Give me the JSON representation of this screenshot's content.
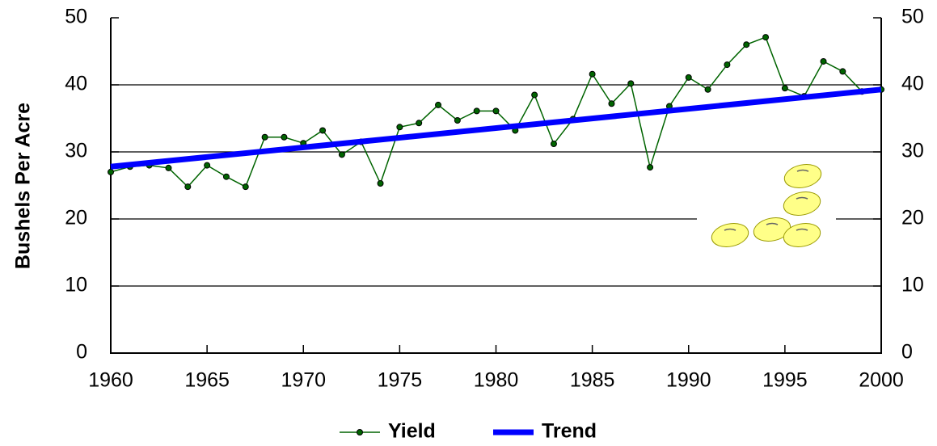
{
  "chart_data": {
    "type": "line",
    "ylabel": "Bushels Per Acre",
    "xlim": [
      1960,
      2000
    ],
    "xticks": [
      1960,
      1965,
      1970,
      1975,
      1980,
      1985,
      1990,
      1995,
      2000
    ],
    "ylim": [
      0,
      50
    ],
    "yticks": [
      0,
      10,
      20,
      30,
      40,
      50
    ],
    "y2lim": [
      0,
      50
    ],
    "y2ticks": [
      0,
      10,
      20,
      30,
      40,
      50
    ],
    "grid": true,
    "legend": "bottom",
    "series": [
      {
        "name": "Yield",
        "color": "#006400",
        "marker": true,
        "x": [
          1960,
          1961,
          1962,
          1963,
          1964,
          1965,
          1966,
          1967,
          1968,
          1969,
          1970,
          1971,
          1972,
          1973,
          1974,
          1975,
          1976,
          1977,
          1978,
          1979,
          1980,
          1981,
          1982,
          1983,
          1984,
          1985,
          1986,
          1987,
          1988,
          1989,
          1990,
          1991,
          1992,
          1993,
          1994,
          1995,
          1996,
          1997,
          1998,
          1999,
          2000
        ],
        "values": [
          27.0,
          27.8,
          28.0,
          27.6,
          24.8,
          28.0,
          26.3,
          24.8,
          32.2,
          32.2,
          31.3,
          33.2,
          29.6,
          31.5,
          25.3,
          33.7,
          34.3,
          37.0,
          34.7,
          36.1,
          36.1,
          33.2,
          38.5,
          31.2,
          34.9,
          41.6,
          37.2,
          40.2,
          27.7,
          36.8,
          41.1,
          39.3,
          43.0,
          46.0,
          47.1,
          39.5,
          38.3,
          43.5,
          42.0,
          39.0,
          39.3
        ]
      },
      {
        "name": "Trend",
        "color": "#0000ff",
        "marker": false,
        "x": [
          1960,
          2000
        ],
        "values": [
          27.8,
          39.3
        ]
      }
    ]
  }
}
